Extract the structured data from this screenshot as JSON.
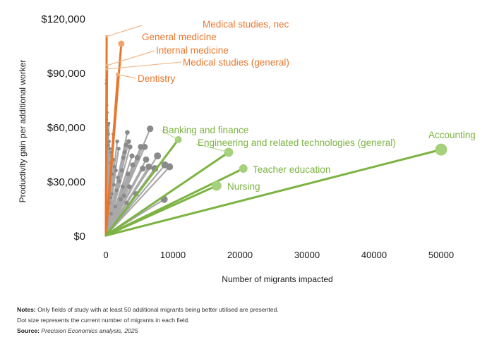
{
  "chart_data": {
    "type": "scatter",
    "title": "",
    "xlabel": "Number of migrants impacted",
    "ylabel": "Productivity gain per additional worker",
    "xlim": [
      0,
      52000
    ],
    "ylim": [
      0,
      120000
    ],
    "x_ticks": [
      "0",
      "10000",
      "20000",
      "30000",
      "40000",
      "50000"
    ],
    "y_ticks": [
      "$0",
      "$30,000",
      "$60,000",
      "$90,000",
      "$120,000"
    ],
    "colors": {
      "medical": "#e8772e",
      "highlight": "#7cb342",
      "highlight_dot": "#a5d07c",
      "other": "#a9a9a9",
      "other_dot": "#8a8a8a"
    },
    "highlighted_series": [
      {
        "name": "Medical studies, nec",
        "group": "medical",
        "x": 120,
        "y": 110000
      },
      {
        "name": "General medicine",
        "group": "medical",
        "x": 2300,
        "y": 106000
      },
      {
        "name": "Internal medicine",
        "group": "medical",
        "x": 180,
        "y": 94000
      },
      {
        "name": "Medical studies (general)",
        "group": "medical",
        "x": 120,
        "y": 92000
      },
      {
        "name": "Dentistry",
        "group": "medical",
        "x": 1800,
        "y": 89000
      },
      {
        "name": "Banking and finance",
        "group": "highlight",
        "x": 10800,
        "y": 53000
      },
      {
        "name": "Engineering and related technologies (general)",
        "group": "highlight",
        "x": 18300,
        "y": 46000
      },
      {
        "name": "Accounting",
        "group": "highlight",
        "x": 50000,
        "y": 47500
      },
      {
        "name": "Teacher education",
        "group": "highlight",
        "x": 20500,
        "y": 37000
      },
      {
        "name": "Nursing",
        "group": "highlight",
        "x": 16500,
        "y": 27500
      }
    ],
    "other_points": [
      [
        100,
        86000
      ],
      [
        60,
        84000
      ],
      [
        150,
        72000
      ],
      [
        200,
        68000
      ],
      [
        120,
        64000
      ],
      [
        300,
        61000
      ],
      [
        250,
        58000
      ],
      [
        400,
        56000
      ],
      [
        500,
        52000
      ],
      [
        350,
        50000
      ],
      [
        600,
        48000
      ],
      [
        800,
        46000
      ],
      [
        900,
        44000
      ],
      [
        1100,
        42000
      ],
      [
        700,
        40000
      ],
      [
        1300,
        38000
      ],
      [
        1500,
        36000
      ],
      [
        1000,
        34000
      ],
      [
        1800,
        32000
      ],
      [
        2000,
        30000
      ],
      [
        1200,
        28000
      ],
      [
        2500,
        27000
      ],
      [
        1600,
        25000
      ],
      [
        900,
        23000
      ],
      [
        700,
        21000
      ],
      [
        2200,
        20000
      ],
      [
        500,
        18000
      ],
      [
        1400,
        16000
      ],
      [
        300,
        14000
      ],
      [
        800,
        12000
      ],
      [
        3200,
        57000
      ],
      [
        3400,
        52000
      ],
      [
        3600,
        49000
      ],
      [
        3000,
        50000
      ],
      [
        2800,
        46000
      ],
      [
        2600,
        43000
      ],
      [
        3900,
        44000
      ],
      [
        4000,
        39000
      ],
      [
        3300,
        34000
      ],
      [
        3500,
        27000
      ],
      [
        2700,
        22000
      ],
      [
        3100,
        18000
      ],
      [
        4700,
        43000
      ],
      [
        5200,
        49000
      ],
      [
        5800,
        49000
      ],
      [
        5500,
        37000
      ],
      [
        6400,
        38000
      ],
      [
        6600,
        59000
      ],
      [
        7700,
        44000
      ],
      [
        8800,
        39000
      ],
      [
        9500,
        38000
      ],
      [
        8700,
        20000
      ],
      [
        7300,
        37000
      ],
      [
        6000,
        42000
      ],
      [
        4500,
        23000
      ],
      [
        2400,
        36000
      ],
      [
        1900,
        48000
      ],
      [
        1700,
        52000
      ],
      [
        1100,
        56000
      ],
      [
        450,
        62000
      ]
    ]
  },
  "notes": {
    "notes_label": "Notes:",
    "notes_line1": "Only fields of study with at least 50 additional migrants being better utilised are presented.",
    "notes_line2": "Dot size represents the current number of migrants in each field.",
    "source_label": "Source:",
    "source_text": "Precision Economics analysis, 2025"
  }
}
